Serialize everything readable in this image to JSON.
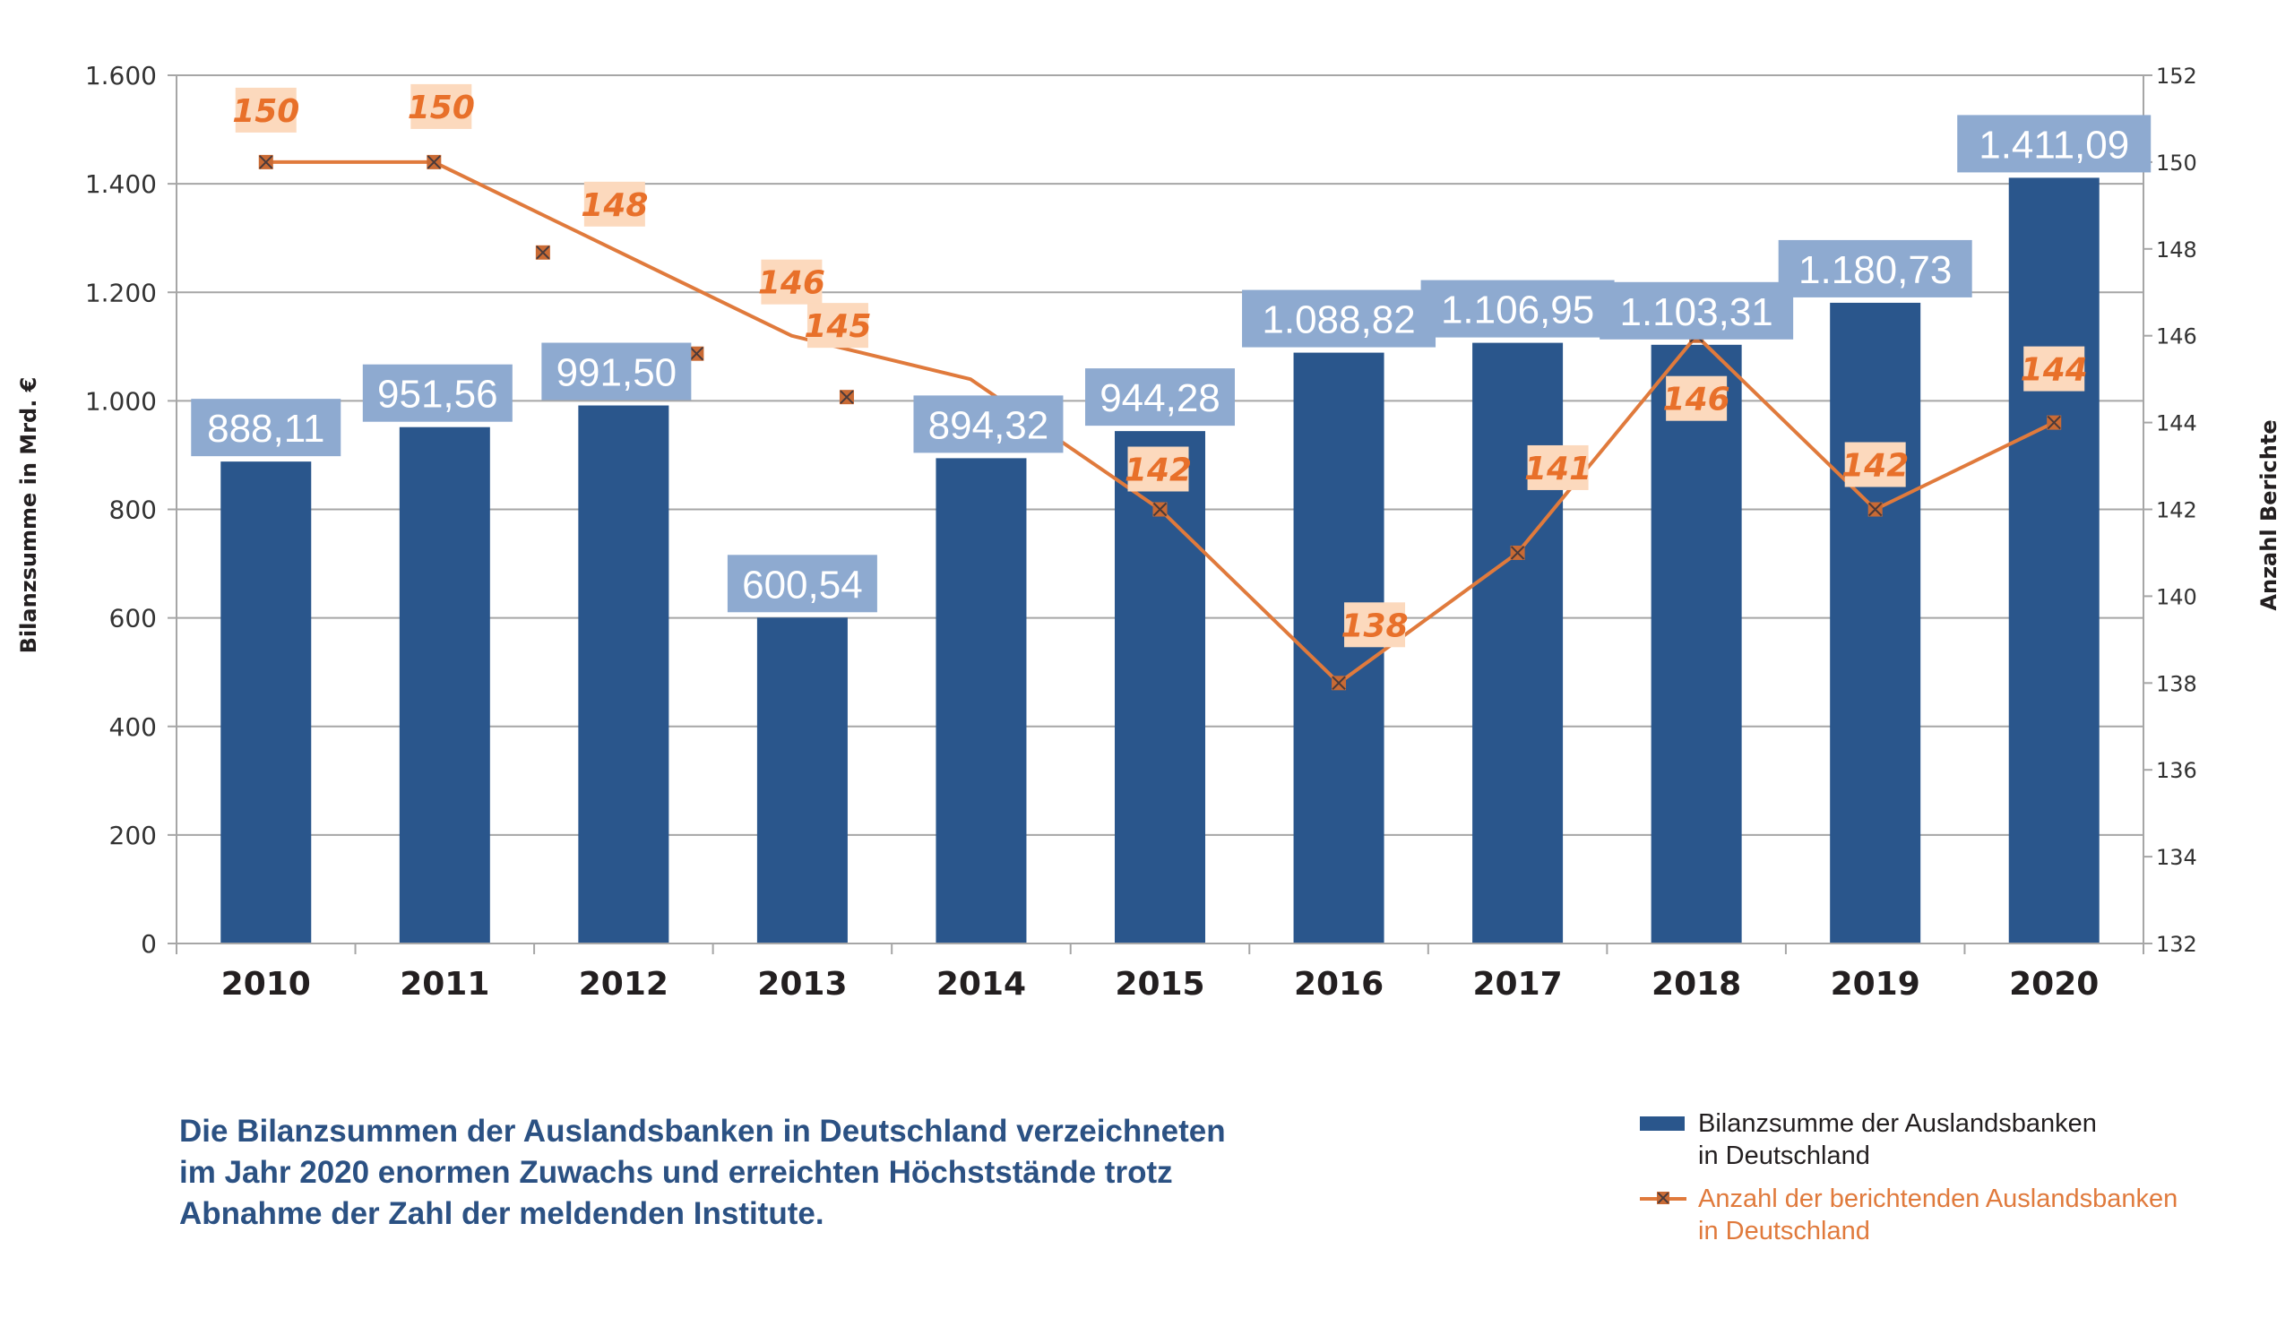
{
  "chart_data": {
    "type": "bar",
    "combo": "bar + line (dual axis)",
    "categories": [
      "2010",
      "2011",
      "2012",
      "2013",
      "2014",
      "2015",
      "2016",
      "2017",
      "2018",
      "2019",
      "2020"
    ],
    "series": [
      {
        "name": "Bilanzsumme der Auslandsbanken in Deutschland",
        "type": "bar",
        "axis": "left",
        "color": "#2a568c",
        "values": [
          888.11,
          951.56,
          991.5,
          600.54,
          894.32,
          944.28,
          1088.82,
          1106.95,
          1103.31,
          1180.73,
          1411.09
        ],
        "labels": [
          "888,11",
          "951,56",
          "991,50",
          "600,54",
          "894,32",
          "944,28",
          "1.088,82",
          "1.106,95",
          "1.103,31",
          "1.180,73",
          "1.411,09"
        ],
        "label_bg": "#8eaad0"
      },
      {
        "name": "Anzahl der berichtenden Auslandsbanken in Deutschland",
        "type": "line",
        "axis": "right",
        "color": "#e07a3c",
        "marker": "x-square",
        "values": [
          150,
          150,
          148,
          146,
          145,
          142,
          138,
          141,
          146,
          142,
          144
        ],
        "labels": [
          "150",
          "150",
          "148",
          "146",
          "145",
          "142",
          "138",
          "141",
          "146",
          "142",
          "144"
        ],
        "label_bg": "#fcd9bd"
      }
    ],
    "ylabel": "Bilanzsumme in Mrd. €",
    "ylabel_right": "Anzahl Berichte",
    "ylim": [
      0,
      1600
    ],
    "yticks": [
      0,
      200,
      400,
      600,
      800,
      1000,
      1200,
      1400,
      1600
    ],
    "ytick_labels": [
      "0",
      "200",
      "400",
      "600",
      "800",
      "1.000",
      "1.200",
      "1.400",
      "1.600"
    ],
    "ylim_right": [
      132,
      152
    ],
    "yticks_right": [
      132,
      134,
      136,
      138,
      140,
      142,
      144,
      146,
      148,
      150,
      152
    ],
    "grid": true,
    "legend_position": "bottom-right"
  },
  "caption": [
    "Die Bilanzsummen der Auslandsbanken in Deutschland verzeichneten",
    "im Jahr 2020 enormen Zuwachs und erreichten Höchststände trotz",
    "Abnahme der Zahl der meldenden Institute."
  ],
  "legend": {
    "bar": [
      "Bilanzsumme der Auslandsbanken",
      "in Deutschland"
    ],
    "line": [
      "Anzahl der berichtenden Auslandsbanken",
      "in Deutschland"
    ]
  }
}
